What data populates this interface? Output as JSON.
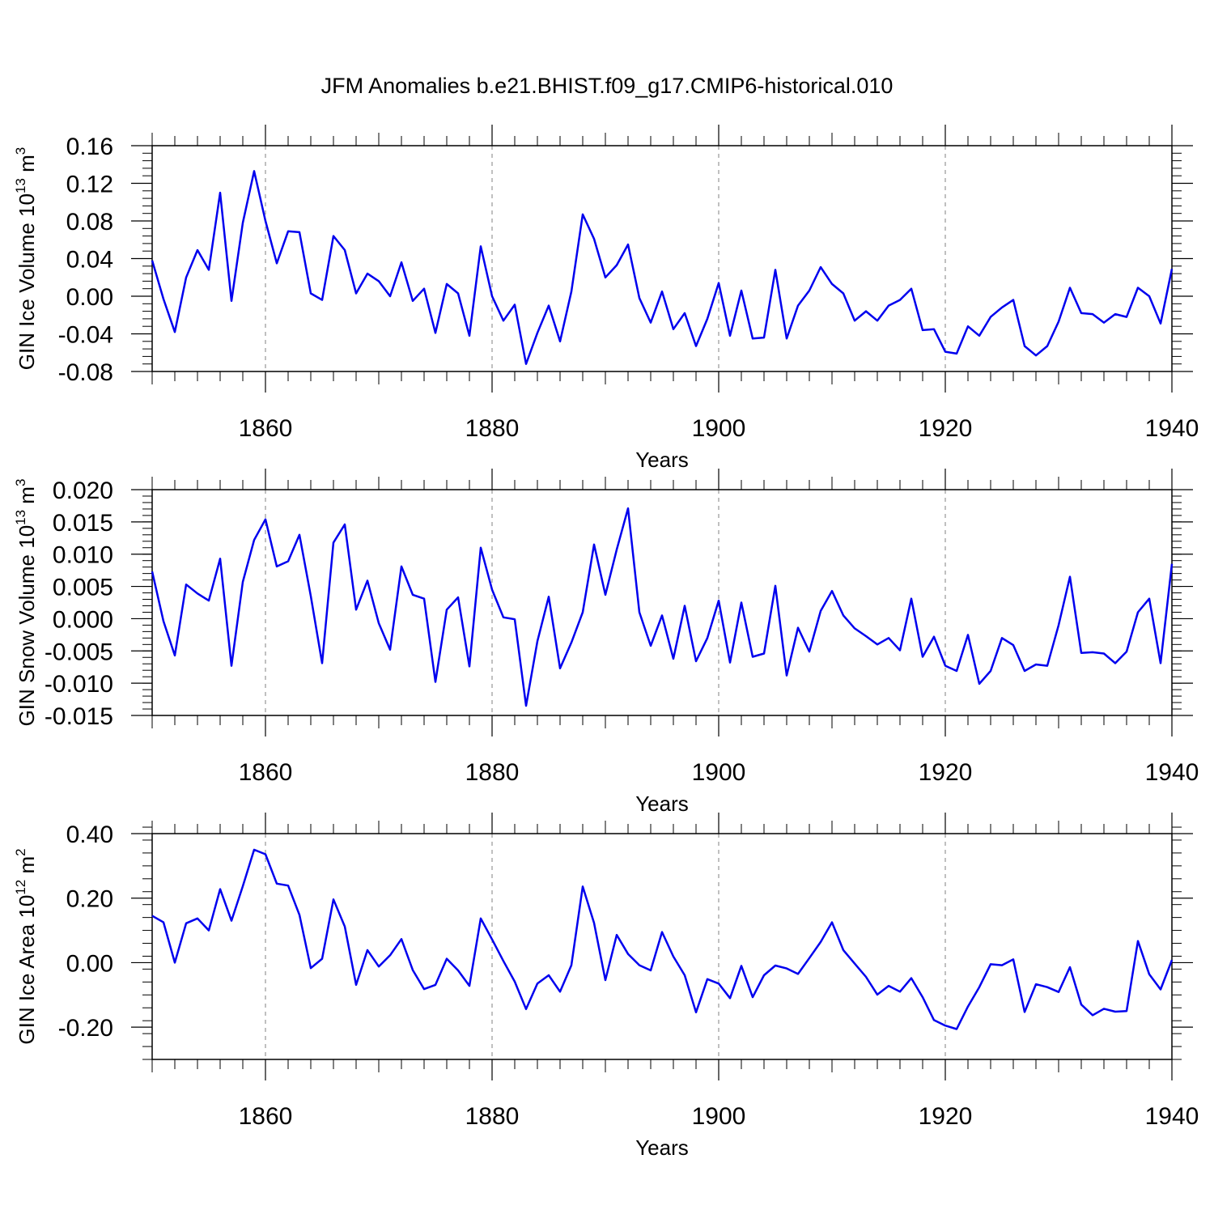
{
  "title": "JFM Anomalies b.e21.BHIST.f09_g17.CMIP6-historical.010",
  "colors": {
    "line": "#0000ee",
    "axis": "#000000",
    "grid": "#808080"
  },
  "chart_data": [
    {
      "type": "line",
      "ylabel_main": "GIN Ice Volume 10",
      "ylabel_exp": "13",
      "ylabel_unit": " m",
      "ylabel_unit_exp": "3",
      "xlabel": "Years",
      "xlim": [
        1850,
        1940
      ],
      "ylim": [
        -0.08,
        0.16
      ],
      "yticks": [
        -0.08,
        -0.04,
        0.0,
        0.04,
        0.08,
        0.12,
        0.16
      ],
      "ytick_labels": [
        "-0.08",
        "-0.04",
        "0.00",
        "0.04",
        "0.08",
        "0.12",
        "0.16"
      ],
      "yminor_step": 0.008,
      "xticks": [
        1860,
        1880,
        1900,
        1920,
        1940
      ],
      "xtick_labels": [
        "1860",
        "1880",
        "1900",
        "1920",
        "1940"
      ],
      "grid_x": [
        1860,
        1880,
        1900,
        1920
      ],
      "series": [
        {
          "name": "GIN Ice Volume",
          "x_start": 1850,
          "values": [
            0.038,
            -0.003,
            -0.038,
            0.02,
            0.049,
            0.028,
            0.11,
            -0.005,
            0.078,
            0.133,
            0.08,
            0.035,
            0.069,
            0.068,
            0.003,
            -0.004,
            0.064,
            0.049,
            0.003,
            0.024,
            0.016,
            0.0,
            0.036,
            -0.005,
            0.008,
            -0.039,
            0.013,
            0.003,
            -0.042,
            0.053,
            0.0,
            -0.026,
            -0.009,
            -0.072,
            -0.039,
            -0.01,
            -0.048,
            0.005,
            0.087,
            0.061,
            0.02,
            0.033,
            0.055,
            -0.002,
            -0.028,
            0.005,
            -0.035,
            -0.018,
            -0.053,
            -0.024,
            0.014,
            -0.042,
            0.006,
            -0.045,
            -0.044,
            0.028,
            -0.045,
            -0.01,
            0.006,
            0.031,
            0.013,
            0.003,
            -0.026,
            -0.016,
            -0.026,
            -0.01,
            -0.004,
            0.008,
            -0.036,
            -0.035,
            -0.059,
            -0.061,
            -0.032,
            -0.042,
            -0.022,
            -0.012,
            -0.004,
            -0.053,
            -0.063,
            -0.053,
            -0.027,
            0.009,
            -0.018,
            -0.019,
            -0.028,
            -0.019,
            -0.022,
            0.009,
            0.0,
            -0.029,
            0.029
          ]
        }
      ]
    },
    {
      "type": "line",
      "ylabel_main": "GIN Snow Volume 10",
      "ylabel_exp": "13",
      "ylabel_unit": " m",
      "ylabel_unit_exp": "3",
      "xlabel": "Years",
      "xlim": [
        1850,
        1940
      ],
      "ylim": [
        -0.015,
        0.02
      ],
      "yticks": [
        -0.015,
        -0.01,
        -0.005,
        0.0,
        0.005,
        0.01,
        0.015,
        0.02
      ],
      "ytick_labels": [
        "-0.015",
        "-0.010",
        "-0.005",
        "0.000",
        "0.005",
        "0.010",
        "0.015",
        "0.020"
      ],
      "yminor_step": 0.001,
      "xticks": [
        1860,
        1880,
        1900,
        1920,
        1940
      ],
      "xtick_labels": [
        "1860",
        "1880",
        "1900",
        "1920",
        "1940"
      ],
      "grid_x": [
        1860,
        1880,
        1900,
        1920
      ],
      "series": [
        {
          "name": "GIN Snow Volume",
          "x_start": 1850,
          "values": [
            0.0073,
            -0.0004,
            -0.0057,
            0.0053,
            0.0039,
            0.0028,
            0.0093,
            -0.0073,
            0.0057,
            0.0122,
            0.0154,
            0.0081,
            0.0089,
            0.013,
            0.0035,
            -0.0069,
            0.0118,
            0.0146,
            0.0014,
            0.0059,
            -0.0007,
            -0.0048,
            0.0081,
            0.0037,
            0.0031,
            -0.0098,
            0.0014,
            0.0033,
            -0.0074,
            0.011,
            0.0045,
            0.0002,
            -0.0001,
            -0.0135,
            -0.0035,
            0.0034,
            -0.0077,
            -0.0037,
            0.001,
            0.0115,
            0.0037,
            0.0107,
            0.0171,
            0.001,
            -0.0042,
            0.0005,
            -0.0062,
            0.002,
            -0.0066,
            -0.003,
            0.0028,
            -0.0068,
            0.0025,
            -0.0059,
            -0.0054,
            0.0051,
            -0.0088,
            -0.0014,
            -0.0051,
            0.0012,
            0.0043,
            0.0005,
            -0.0015,
            -0.0027,
            -0.004,
            -0.003,
            -0.0049,
            0.0031,
            -0.0059,
            -0.0028,
            -0.0073,
            -0.0081,
            -0.0025,
            -0.0101,
            -0.0081,
            -0.003,
            -0.0041,
            -0.0081,
            -0.0071,
            -0.0073,
            -0.001,
            0.0065,
            -0.0053,
            -0.0052,
            -0.0054,
            -0.0069,
            -0.0051,
            0.001,
            0.0031,
            -0.0069,
            0.0085
          ]
        }
      ]
    },
    {
      "type": "line",
      "ylabel_main": "GIN Ice Area 10",
      "ylabel_exp": "12",
      "ylabel_unit": " m",
      "ylabel_unit_exp": "2",
      "xlabel": "Years",
      "xlim": [
        1850,
        1940
      ],
      "ylim": [
        -0.3,
        0.4
      ],
      "yticks": [
        -0.2,
        0.0,
        0.2,
        0.4
      ],
      "ytick_labels": [
        "-0.20",
        "0.00",
        "0.20",
        "0.40"
      ],
      "yminor_step": 0.04,
      "xticks": [
        1860,
        1880,
        1900,
        1920,
        1940
      ],
      "xtick_labels": [
        "1860",
        "1880",
        "1900",
        "1920",
        "1940"
      ],
      "grid_x": [
        1860,
        1880,
        1900,
        1920
      ],
      "series": [
        {
          "name": "GIN Ice Area",
          "x_start": 1850,
          "values": [
            0.145,
            0.125,
            0.0,
            0.122,
            0.137,
            0.1,
            0.228,
            0.13,
            0.237,
            0.35,
            0.336,
            0.245,
            0.239,
            0.148,
            -0.017,
            0.012,
            0.196,
            0.112,
            -0.069,
            0.039,
            -0.012,
            0.023,
            0.073,
            -0.023,
            -0.082,
            -0.069,
            0.012,
            -0.024,
            -0.072,
            0.137,
            0.072,
            0.005,
            -0.059,
            -0.144,
            -0.065,
            -0.039,
            -0.09,
            -0.008,
            0.236,
            0.123,
            -0.054,
            0.086,
            0.027,
            -0.008,
            -0.024,
            0.095,
            0.019,
            -0.039,
            -0.154,
            -0.051,
            -0.065,
            -0.11,
            -0.01,
            -0.107,
            -0.039,
            -0.009,
            -0.018,
            -0.035,
            0.014,
            0.064,
            0.125,
            0.039,
            -0.003,
            -0.044,
            -0.099,
            -0.072,
            -0.09,
            -0.048,
            -0.107,
            -0.178,
            -0.195,
            -0.206,
            -0.136,
            -0.076,
            -0.005,
            -0.008,
            0.01,
            -0.153,
            -0.067,
            -0.076,
            -0.091,
            -0.014,
            -0.13,
            -0.163,
            -0.143,
            -0.152,
            -0.15,
            0.067,
            -0.036,
            -0.083,
            0.008
          ]
        }
      ]
    }
  ]
}
